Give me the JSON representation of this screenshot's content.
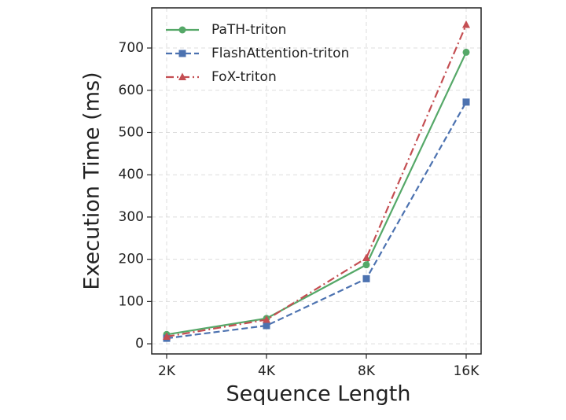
{
  "chart_data": {
    "type": "line",
    "xlabel": "Sequence Length",
    "ylabel": "Execution Time (ms)",
    "categories": [
      "2K",
      "4K",
      "8K",
      "16K"
    ],
    "series": [
      {
        "name": "PaTH-triton",
        "color": "#55a868",
        "linestyle": "solid",
        "marker": "circle",
        "values": [
          22,
          60,
          187,
          690
        ]
      },
      {
        "name": "FlashAttention-triton",
        "color": "#4c72b0",
        "linestyle": "dashed",
        "marker": "square",
        "values": [
          13,
          43,
          154,
          572
        ]
      },
      {
        "name": "FoX-triton",
        "color": "#c44e52",
        "linestyle": "dashdot",
        "marker": "triangle",
        "values": [
          17,
          57,
          203,
          755
        ]
      }
    ],
    "ylim": [
      -24,
      795
    ],
    "yticks": [
      0,
      100,
      200,
      300,
      400,
      500,
      600,
      700
    ],
    "grid": true,
    "legend": "upper left"
  }
}
